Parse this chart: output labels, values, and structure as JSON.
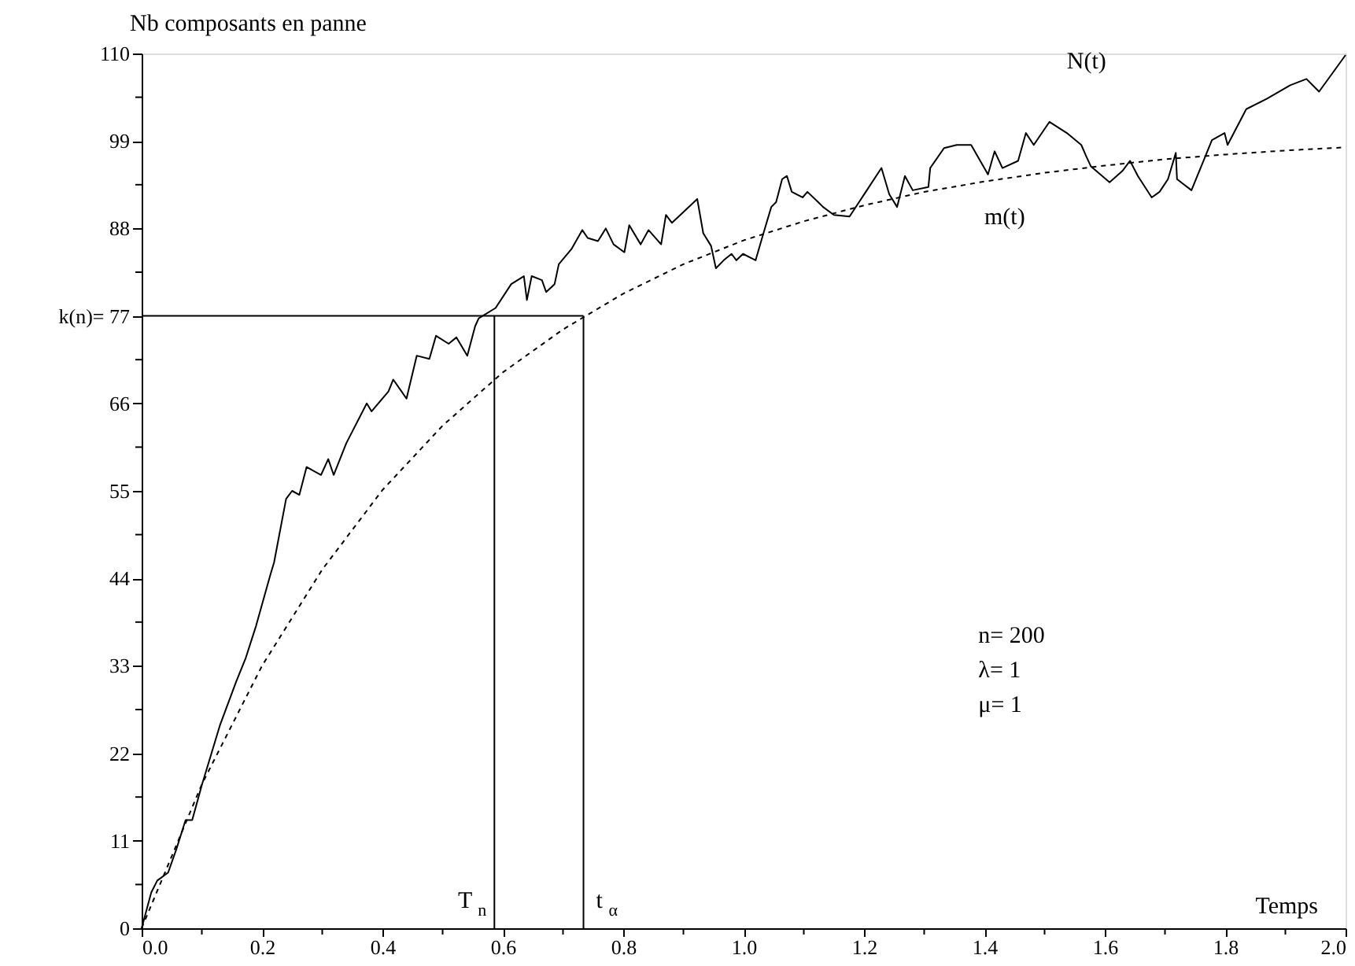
{
  "chart_data": {
    "type": "line",
    "xlabel": "Temps",
    "ylabel": "Nb composants en panne",
    "xlim": [
      0,
      2.0
    ],
    "ylim": [
      0,
      110
    ],
    "xticks": [
      {
        "value": 0,
        "label": "0.0"
      },
      {
        "value": 0.1,
        "label": null
      },
      0.2,
      {
        "value": 0.3,
        "label": null
      },
      0.4,
      {
        "value": 0.5,
        "label": null
      },
      0.6,
      {
        "value": 0.7,
        "label": null
      },
      0.8,
      {
        "value": 0.9,
        "label": null
      },
      {
        "value": 1.0,
        "label": "1.0"
      },
      {
        "value": 1.1,
        "label": null
      },
      1.2,
      {
        "value": 1.3,
        "label": null
      },
      1.4,
      {
        "value": 1.5,
        "label": null
      },
      1.6,
      {
        "value": 1.7,
        "label": null
      },
      1.8,
      {
        "value": 1.9,
        "label": null
      },
      {
        "value": 2.0,
        "label": "2.0"
      }
    ],
    "yticks": [
      0,
      {
        "value": 5.5,
        "label": null
      },
      11,
      {
        "value": 16.5,
        "label": null
      },
      22,
      {
        "value": 27.5,
        "label": null
      },
      33,
      {
        "value": 38.5,
        "label": null
      },
      44,
      {
        "value": 49.5,
        "label": null
      },
      55,
      {
        "value": 60.5,
        "label": null
      },
      66,
      {
        "value": 71.5,
        "label": null
      },
      {
        "value": 77,
        "label": "k(n)= 77"
      },
      {
        "value": 82.5,
        "label": null
      },
      88,
      {
        "value": 93.5,
        "label": null
      },
      99,
      {
        "value": 104.5,
        "label": null
      },
      110
    ],
    "grid": false,
    "marker": "none",
    "series": [
      {
        "name": "N(t)",
        "color": "#000000",
        "line_style": "solid",
        "x": [
          0,
          0.016,
          0.026,
          0.044,
          0.058,
          0.073,
          0.084,
          0.1,
          0.112,
          0.13,
          0.157,
          0.173,
          0.19,
          0.214,
          0.22,
          0.24,
          0.25,
          0.262,
          0.274,
          0.298,
          0.31,
          0.319,
          0.34,
          0.374,
          0.382,
          0.41,
          0.418,
          0.44,
          0.457,
          0.478,
          0.489,
          0.51,
          0.523,
          0.541,
          0.554,
          0.56,
          0.588,
          0.614,
          0.635,
          0.64,
          0.648,
          0.665,
          0.672,
          0.686,
          0.693,
          0.714,
          0.732,
          0.741,
          0.758,
          0.771,
          0.784,
          0.802,
          0.81,
          0.829,
          0.842,
          0.863,
          0.871,
          0.881,
          0.923,
          0.933,
          0.946,
          0.954,
          0.967,
          0.98,
          0.988,
          0.999,
          1.02,
          1.033,
          1.046,
          1.054,
          1.064,
          1.072,
          1.08,
          1.098,
          1.106,
          1.124,
          1.132,
          1.15,
          1.176,
          1.203,
          1.229,
          1.242,
          1.255,
          1.268,
          1.281,
          1.307,
          1.31,
          1.333,
          1.354,
          1.378,
          1.406,
          1.417,
          1.43,
          1.456,
          1.469,
          1.482,
          1.508,
          1.537,
          1.561,
          1.569,
          1.577,
          1.608,
          1.629,
          1.642,
          1.655,
          1.678,
          1.691,
          1.705,
          1.718,
          1.72,
          1.744,
          1.778,
          1.799,
          1.804,
          1.835,
          1.869,
          1.908,
          1.935,
          1.956,
          2.0
        ],
        "values": [
          0,
          4.5,
          6,
          7,
          10,
          13.6,
          13.6,
          18,
          21,
          25.5,
          31,
          34,
          38,
          44.5,
          46,
          54,
          55,
          54.5,
          58,
          57,
          59,
          57,
          61,
          66,
          65,
          67.5,
          69,
          66.6,
          72,
          71.6,
          74.5,
          73.5,
          74.3,
          72,
          75.7,
          76.7,
          78,
          81,
          82,
          79,
          82,
          81.5,
          80,
          81,
          83.5,
          85.4,
          87.8,
          86.8,
          86.4,
          88,
          86,
          85,
          88.4,
          86,
          87.8,
          86,
          89.7,
          88.7,
          91.7,
          87.4,
          85.8,
          83,
          84,
          84.8,
          84,
          84.8,
          84,
          87.4,
          90.7,
          91.3,
          94.2,
          94.6,
          92.6,
          91.9,
          92.6,
          91.3,
          90.7,
          89.7,
          89.5,
          92.6,
          95.6,
          92.3,
          90.7,
          94.6,
          92.8,
          93.2,
          95.6,
          98.1,
          98.5,
          98.5,
          94.8,
          97.7,
          95.6,
          96.5,
          100,
          98.5,
          101.4,
          100,
          98.5,
          97.1,
          95.8,
          93.8,
          95.2,
          96.5,
          94.6,
          91.9,
          92.6,
          94.2,
          97.5,
          94.2,
          92.8,
          99.1,
          100,
          98.5,
          103,
          104.3,
          106,
          106.8,
          105.2,
          109.8
        ]
      },
      {
        "name": "m(t)",
        "color": "#000000",
        "line_style": "dotted",
        "x": [
          0,
          0.1,
          0.2,
          0.3,
          0.4,
          0.5,
          0.6,
          0.7,
          0.8,
          0.9,
          1.0,
          1.1,
          1.2,
          1.3,
          1.4,
          1.5,
          1.6,
          1.7,
          1.8,
          1.9,
          2.0
        ],
        "values": [
          0,
          18.1,
          33.0,
          45.1,
          55.1,
          63.2,
          69.9,
          75.3,
          79.8,
          83.5,
          86.5,
          88.9,
          90.9,
          92.6,
          93.9,
          95.0,
          95.9,
          96.7,
          97.3,
          97.8,
          98.2
        ]
      }
    ],
    "ref_lines": [
      {
        "axis": "y",
        "value": 77,
        "color": "#000000"
      },
      {
        "axis": "x",
        "value": 0.586,
        "label": "T$_{n}$",
        "color": "#000000"
      },
      {
        "axis": "x",
        "value": 0.734,
        "label": "t$_{α}$",
        "color": "#000000"
      }
    ],
    "annotations": [
      "n= 200",
      "λ= 1",
      "μ= 1"
    ]
  }
}
